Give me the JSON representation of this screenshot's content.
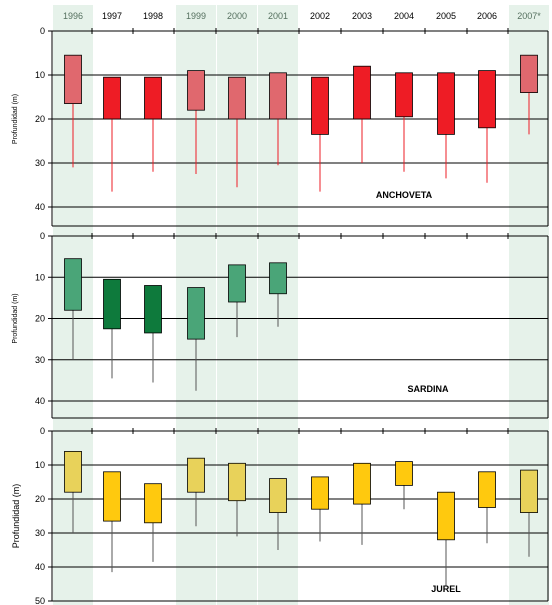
{
  "chart_data": {
    "type": "box",
    "years": [
      "1996",
      "1997",
      "1998",
      "1999",
      "2000",
      "2001",
      "2002",
      "2003",
      "2004",
      "2005",
      "2006",
      "2007*"
    ],
    "highlighted_years": [
      "1996",
      "1999",
      "2000",
      "2001",
      "2007*"
    ],
    "colors": {
      "highlight_band": "#e6f2ea",
      "anchoveta_normal": "#ee1c25",
      "anchoveta_highlight": "#e0686e",
      "sardina_normal": "#0e7a3c",
      "sardina_highlight": "#4aa578",
      "jurel_normal": "#ffc90e",
      "jurel_highlight": "#e8d25a"
    },
    "panels": [
      {
        "title": "ANCHOVETA",
        "ylabel": "Profundidad (m)",
        "yticks": [
          "0",
          "10",
          "20",
          "30",
          "40"
        ],
        "ylim": [
          0,
          40
        ],
        "boxes": [
          {
            "year": "1996",
            "q1": 5.5,
            "q3": 16.5,
            "whisker_max": 31
          },
          {
            "year": "1997",
            "q1": 10.5,
            "q3": 20,
            "whisker_max": 36.5
          },
          {
            "year": "1998",
            "q1": 10.5,
            "q3": 20,
            "whisker_max": 32
          },
          {
            "year": "1999",
            "q1": 9,
            "q3": 18,
            "whisker_max": 32.5
          },
          {
            "year": "2000",
            "q1": 10.5,
            "q3": 20,
            "whisker_max": 35.5
          },
          {
            "year": "2001",
            "q1": 9.5,
            "q3": 20,
            "whisker_max": 30.5
          },
          {
            "year": "2002",
            "q1": 10.5,
            "q3": 23.5,
            "whisker_max": 36.5
          },
          {
            "year": "2003",
            "q1": 8,
            "q3": 20,
            "whisker_max": 30
          },
          {
            "year": "2004",
            "q1": 9.5,
            "q3": 19.5,
            "whisker_max": 32
          },
          {
            "year": "2005",
            "q1": 9.5,
            "q3": 23.5,
            "whisker_max": 33.5
          },
          {
            "year": "2006",
            "q1": 9,
            "q3": 22,
            "whisker_max": 34.5
          },
          {
            "year": "2007*",
            "q1": 5.5,
            "q3": 14,
            "whisker_max": 23.5
          }
        ]
      },
      {
        "title": "SARDINA",
        "ylabel": "Profundidad (m)",
        "yticks": [
          "0",
          "10",
          "20",
          "30",
          "40"
        ],
        "ylim": [
          0,
          40
        ],
        "boxes": [
          {
            "year": "1996",
            "q1": 5.5,
            "q3": 18,
            "whisker_max": 30
          },
          {
            "year": "1997",
            "q1": 10.5,
            "q3": 22.5,
            "whisker_max": 34.5
          },
          {
            "year": "1998",
            "q1": 12,
            "q3": 23.5,
            "whisker_max": 35.5
          },
          {
            "year": "1999",
            "q1": 12.5,
            "q3": 25,
            "whisker_max": 37.5
          },
          {
            "year": "2000",
            "q1": 7,
            "q3": 16,
            "whisker_max": 24.5
          },
          {
            "year": "2001",
            "q1": 6.5,
            "q3": 14,
            "whisker_max": 22
          }
        ]
      },
      {
        "title": "JUREL",
        "ylabel": "Profundidad (m)",
        "yticks": [
          "0",
          "10",
          "20",
          "30",
          "40",
          "50"
        ],
        "ylim": [
          0,
          50
        ],
        "boxes": [
          {
            "year": "1996",
            "q1": 6,
            "q3": 18,
            "whisker_max": 30
          },
          {
            "year": "1997",
            "q1": 12,
            "q3": 26.5,
            "whisker_max": 41.5
          },
          {
            "year": "1998",
            "q1": 15.5,
            "q3": 27,
            "whisker_max": 38.5
          },
          {
            "year": "1999",
            "q1": 8,
            "q3": 18,
            "whisker_max": 28
          },
          {
            "year": "2000",
            "q1": 9.5,
            "q3": 20.5,
            "whisker_max": 31
          },
          {
            "year": "2001",
            "q1": 14,
            "q3": 24,
            "whisker_max": 35
          },
          {
            "year": "2002",
            "q1": 13.5,
            "q3": 23,
            "whisker_max": 32.5
          },
          {
            "year": "2003",
            "q1": 9.5,
            "q3": 21.5,
            "whisker_max": 33.5
          },
          {
            "year": "2004",
            "q1": 9,
            "q3": 16,
            "whisker_max": 23
          },
          {
            "year": "2005",
            "q1": 18,
            "q3": 32,
            "whisker_max": 45.5
          },
          {
            "year": "2006",
            "q1": 12,
            "q3": 22.5,
            "whisker_max": 33
          },
          {
            "year": "2007*",
            "q1": 11.5,
            "q3": 24,
            "whisker_max": 37
          }
        ]
      }
    ]
  }
}
